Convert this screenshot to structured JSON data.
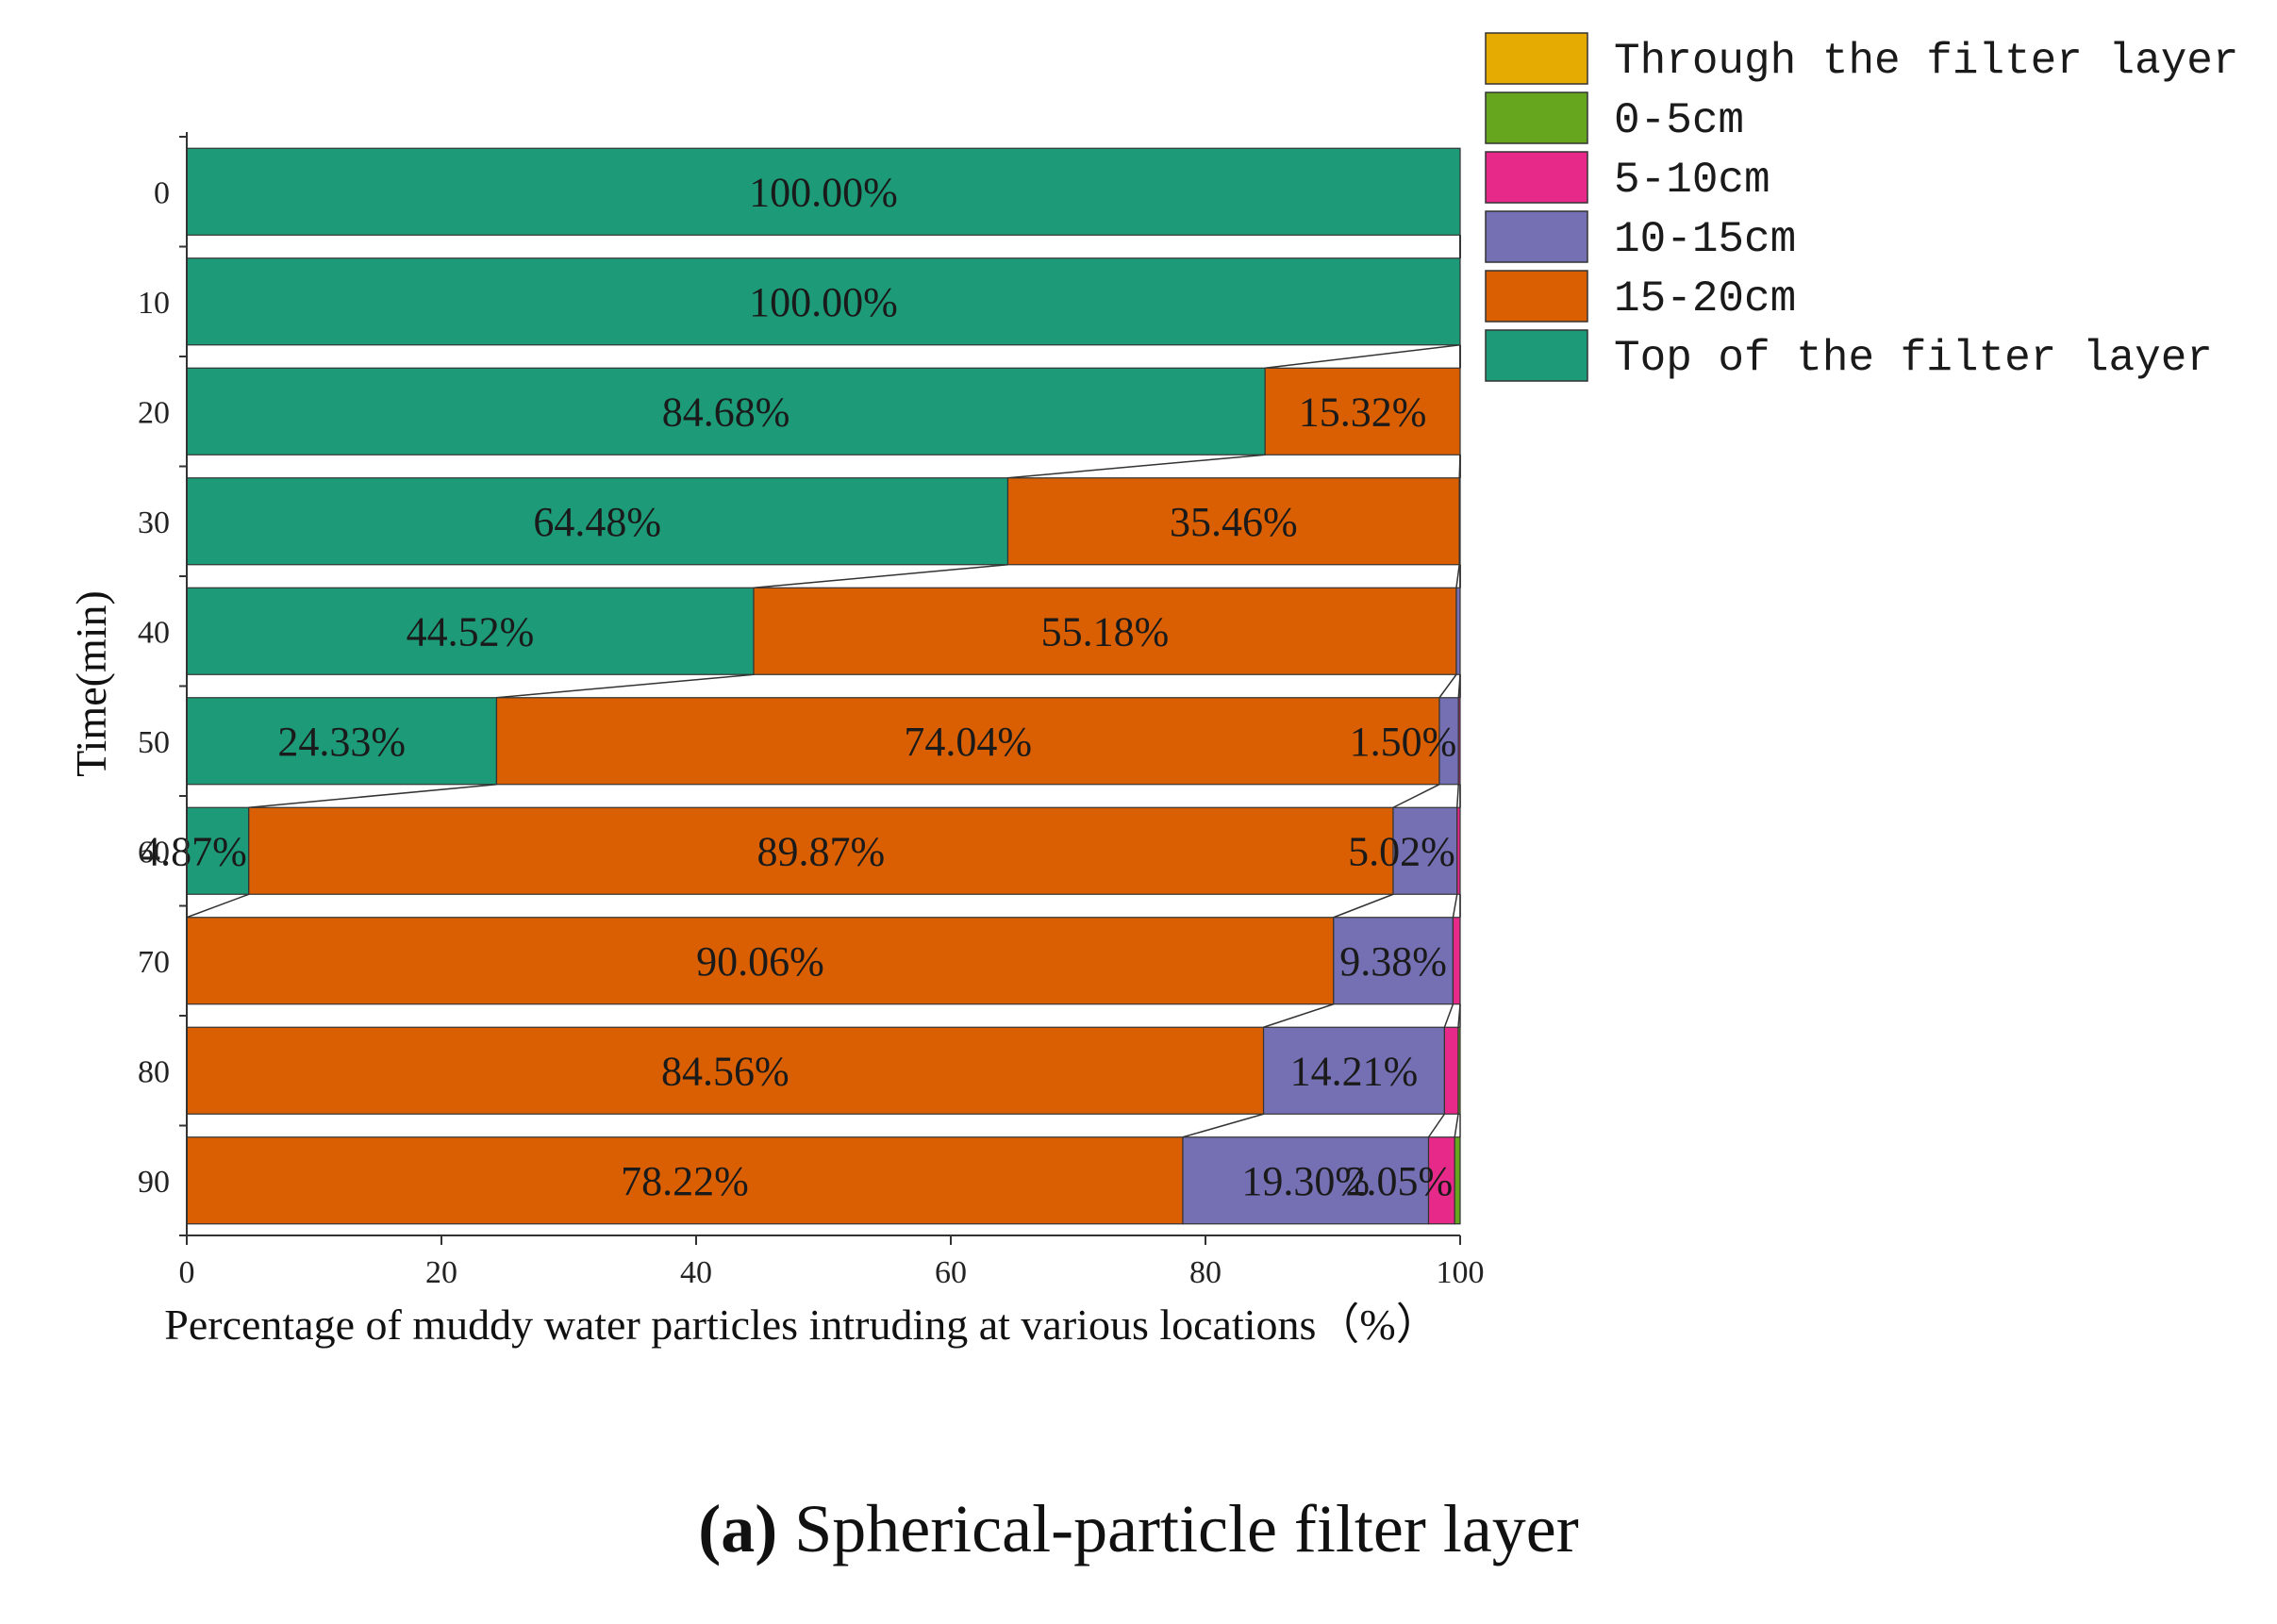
{
  "chart_data": {
    "type": "bar",
    "orientation": "horizontal",
    "stacked": true,
    "xlabel": "Percentage of muddy water particles intruding at various locations（%）",
    "ylabel": "Time(min)",
    "xlim": [
      0,
      100
    ],
    "xticks": [
      "0",
      "20",
      "40",
      "60",
      "80",
      "100"
    ],
    "categories": [
      "0",
      "10",
      "20",
      "30",
      "40",
      "50",
      "60",
      "70",
      "80",
      "90"
    ],
    "series": [
      {
        "name": "Top of the filter layer",
        "color": "#1d9a77",
        "values": [
          100.0,
          100.0,
          84.68,
          64.48,
          44.52,
          24.33,
          4.87,
          0,
          0,
          0
        ],
        "labels": [
          "100.00%",
          "100.00%",
          "84.68%",
          "64.48%",
          "44.52%",
          "24.33%",
          "4.87%",
          "",
          "",
          ""
        ]
      },
      {
        "name": "15-20cm",
        "color": "#d95f02",
        "values": [
          0,
          0,
          15.32,
          35.46,
          55.18,
          74.04,
          89.87,
          90.06,
          84.56,
          78.22
        ],
        "labels": [
          "",
          "",
          "15.32%",
          "35.46%",
          "55.18%",
          "74.04%",
          "89.87%",
          "90.06%",
          "84.56%",
          "78.22%"
        ]
      },
      {
        "name": "10-15cm",
        "color": "#7570b3",
        "values": [
          0,
          0,
          0,
          0.06,
          0.3,
          1.5,
          5.02,
          9.38,
          14.21,
          19.3
        ],
        "labels": [
          "",
          "",
          "",
          "",
          "",
          "1.50%",
          "5.02%",
          "9.38%",
          "14.21%",
          "19.30%"
        ]
      },
      {
        "name": "5-10cm",
        "color": "#e7298a",
        "values": [
          0,
          0,
          0,
          0,
          0,
          0.13,
          0.24,
          0.56,
          1.08,
          2.05
        ],
        "labels": [
          "",
          "",
          "",
          "",
          "",
          "",
          "",
          "",
          "",
          "2.05%"
        ]
      },
      {
        "name": "0-5cm",
        "color": "#66a61e",
        "values": [
          0,
          0,
          0,
          0,
          0,
          0,
          0,
          0,
          0.15,
          0.43
        ],
        "labels": [
          "",
          "",
          "",
          "",
          "",
          "",
          "",
          "",
          "",
          ""
        ]
      },
      {
        "name": "Through the filter layer",
        "color": "#e6ab02",
        "values": [
          0,
          0,
          0,
          0,
          0,
          0,
          0,
          0,
          0,
          0
        ],
        "labels": [
          "",
          "",
          "",
          "",
          "",
          "",
          "",
          "",
          "",
          ""
        ]
      }
    ],
    "legend_order": [
      "Through the filter layer",
      "0-5cm",
      "5-10cm",
      "10-15cm",
      "15-20cm",
      "Top of the filter layer"
    ],
    "legend_position": "top-right",
    "connector_lines": true
  },
  "caption": {
    "letter": "(a)",
    "text": "Spherical-particle filter layer"
  }
}
